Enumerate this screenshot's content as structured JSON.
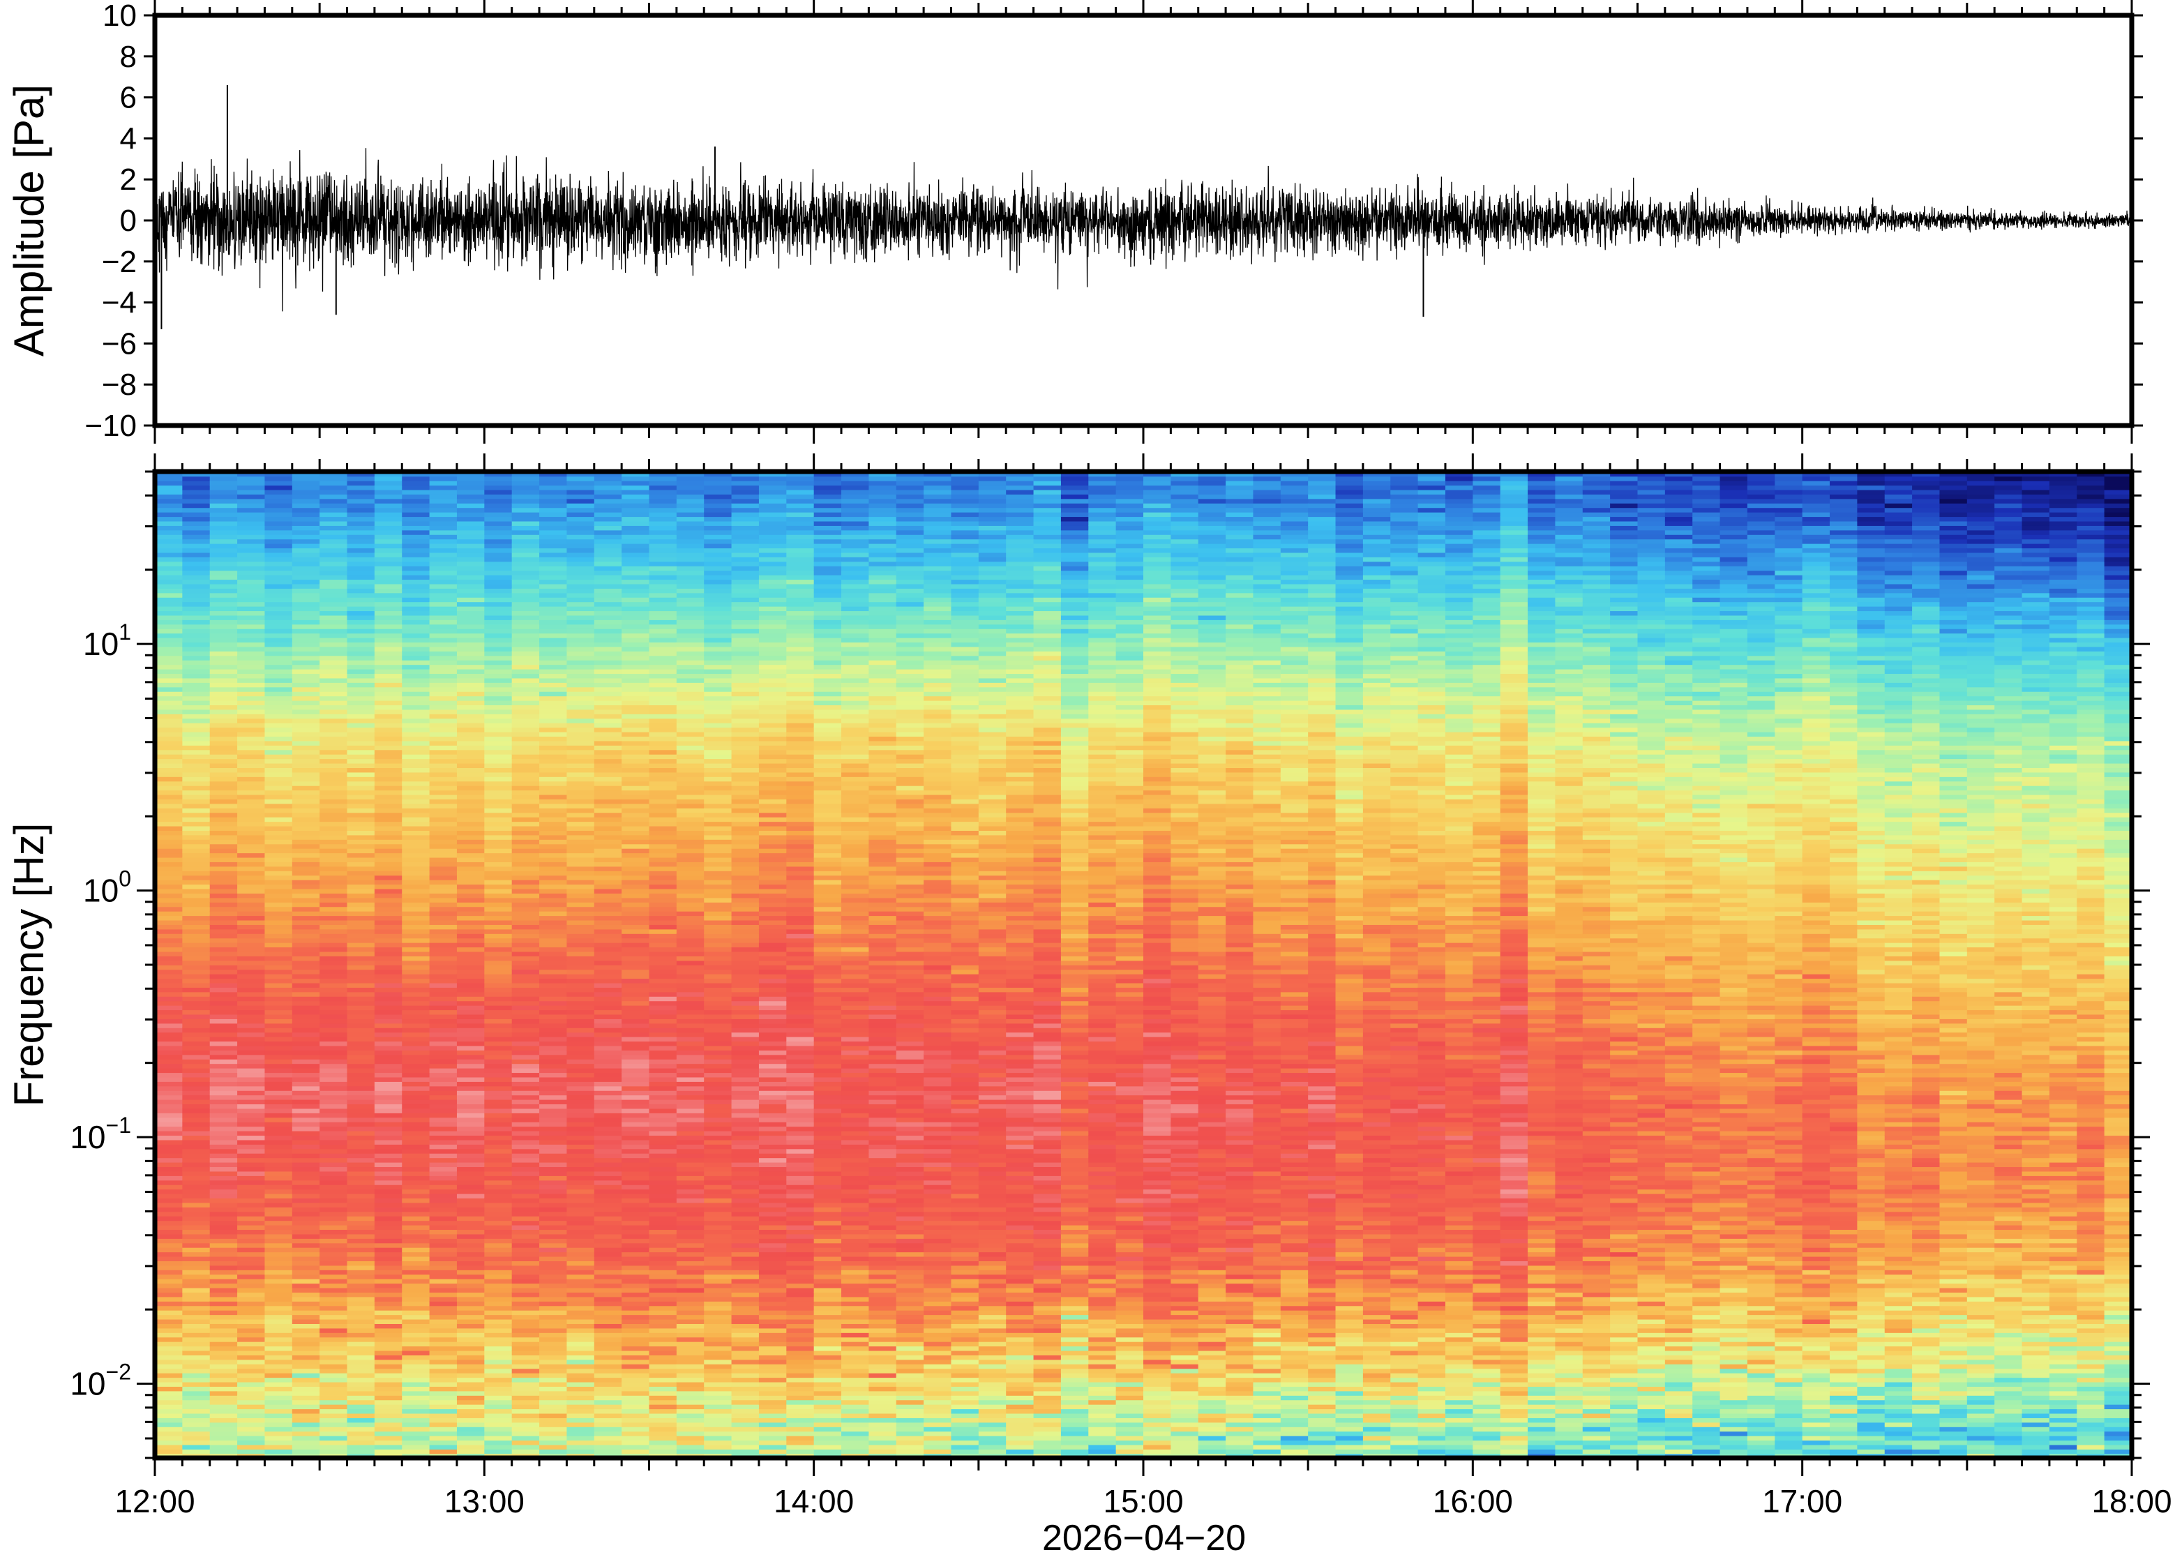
{
  "chart_data": [
    {
      "type": "line",
      "panel": "waveform",
      "ylabel": "Amplitude [Pa]",
      "ylim": [
        -10,
        10
      ],
      "ytick_values": [
        10,
        8,
        6,
        4,
        2,
        0,
        -2,
        -4,
        -6,
        -8,
        -10
      ],
      "ytick_labels": [
        "10",
        "8",
        "6",
        "4",
        "2",
        "0",
        "−2",
        "−4",
        "−6",
        "−8",
        "−10"
      ],
      "xlim_hours": [
        12,
        18
      ],
      "envelope": {
        "hours": [
          12.0,
          12.5,
          13.0,
          13.5,
          14.0,
          14.5,
          15.0,
          15.5,
          16.0,
          16.5,
          17.0,
          17.5,
          18.0
        ],
        "typical_peak_pa": [
          2.8,
          2.6,
          2.4,
          2.3,
          2.1,
          2.0,
          1.9,
          1.9,
          1.7,
          1.3,
          0.8,
          0.5,
          0.4
        ]
      },
      "peaks": [
        {
          "hour": 12.22,
          "value": 6.6
        },
        {
          "hour": 12.02,
          "value": -5.3
        },
        {
          "hour": 15.85,
          "value": -4.7
        },
        {
          "hour": 13.7,
          "value": 3.6
        },
        {
          "hour": 12.55,
          "value": -4.6
        }
      ],
      "line_color": "#000000"
    },
    {
      "type": "heatmap",
      "panel": "spectrogram",
      "ylabel": "Frequency [Hz]",
      "yscale": "log",
      "ylim_hz": [
        0.005,
        50
      ],
      "ytick_values": [
        10,
        1,
        0.1,
        0.01
      ],
      "ytick_labels": [
        {
          "base": "10",
          "exp": "1"
        },
        {
          "base": "10",
          "exp": "0"
        },
        {
          "base": "10",
          "exp": "−1"
        },
        {
          "base": "10",
          "exp": "−2"
        }
      ],
      "x_tick_labels": [
        "12:00",
        "13:00",
        "14:00",
        "15:00",
        "16:00",
        "17:00",
        "18:00"
      ],
      "x_tick_hours": [
        12,
        13,
        14,
        15,
        16,
        17,
        18
      ],
      "xlabel": "2026−04−20",
      "colormap": [
        "#0a0a5a",
        "#1a2fb5",
        "#2f7fe0",
        "#3cc0f0",
        "#5fe0d8",
        "#9ff0b0",
        "#e8f58a",
        "#f8d060",
        "#f8a848",
        "#f56a4e",
        "#f04e4e",
        "#f59a9a"
      ],
      "relative_power": {
        "hours": [
          12.0,
          13.0,
          14.0,
          15.0,
          16.0,
          17.0,
          18.0
        ],
        "freq_hz": [
          40,
          20,
          10,
          4,
          1,
          0.4,
          0.15,
          0.06,
          0.03,
          0.012,
          0.006
        ],
        "levels": [
          [
            0.2,
            0.32,
            0.43,
            0.6,
            0.74,
            0.86,
            0.96,
            0.88,
            0.78,
            0.62,
            0.52
          ],
          [
            0.2,
            0.32,
            0.44,
            0.6,
            0.74,
            0.86,
            0.94,
            0.88,
            0.8,
            0.64,
            0.52
          ],
          [
            0.18,
            0.3,
            0.44,
            0.62,
            0.75,
            0.85,
            0.92,
            0.87,
            0.82,
            0.66,
            0.5
          ],
          [
            0.18,
            0.3,
            0.43,
            0.6,
            0.74,
            0.82,
            0.9,
            0.87,
            0.82,
            0.64,
            0.46
          ],
          [
            0.17,
            0.29,
            0.42,
            0.58,
            0.7,
            0.8,
            0.88,
            0.86,
            0.8,
            0.62,
            0.42
          ],
          [
            0.12,
            0.24,
            0.36,
            0.52,
            0.64,
            0.72,
            0.8,
            0.82,
            0.74,
            0.58,
            0.38
          ],
          [
            0.02,
            0.12,
            0.28,
            0.44,
            0.54,
            0.64,
            0.72,
            0.74,
            0.66,
            0.5,
            0.32
          ]
        ]
      }
    }
  ]
}
